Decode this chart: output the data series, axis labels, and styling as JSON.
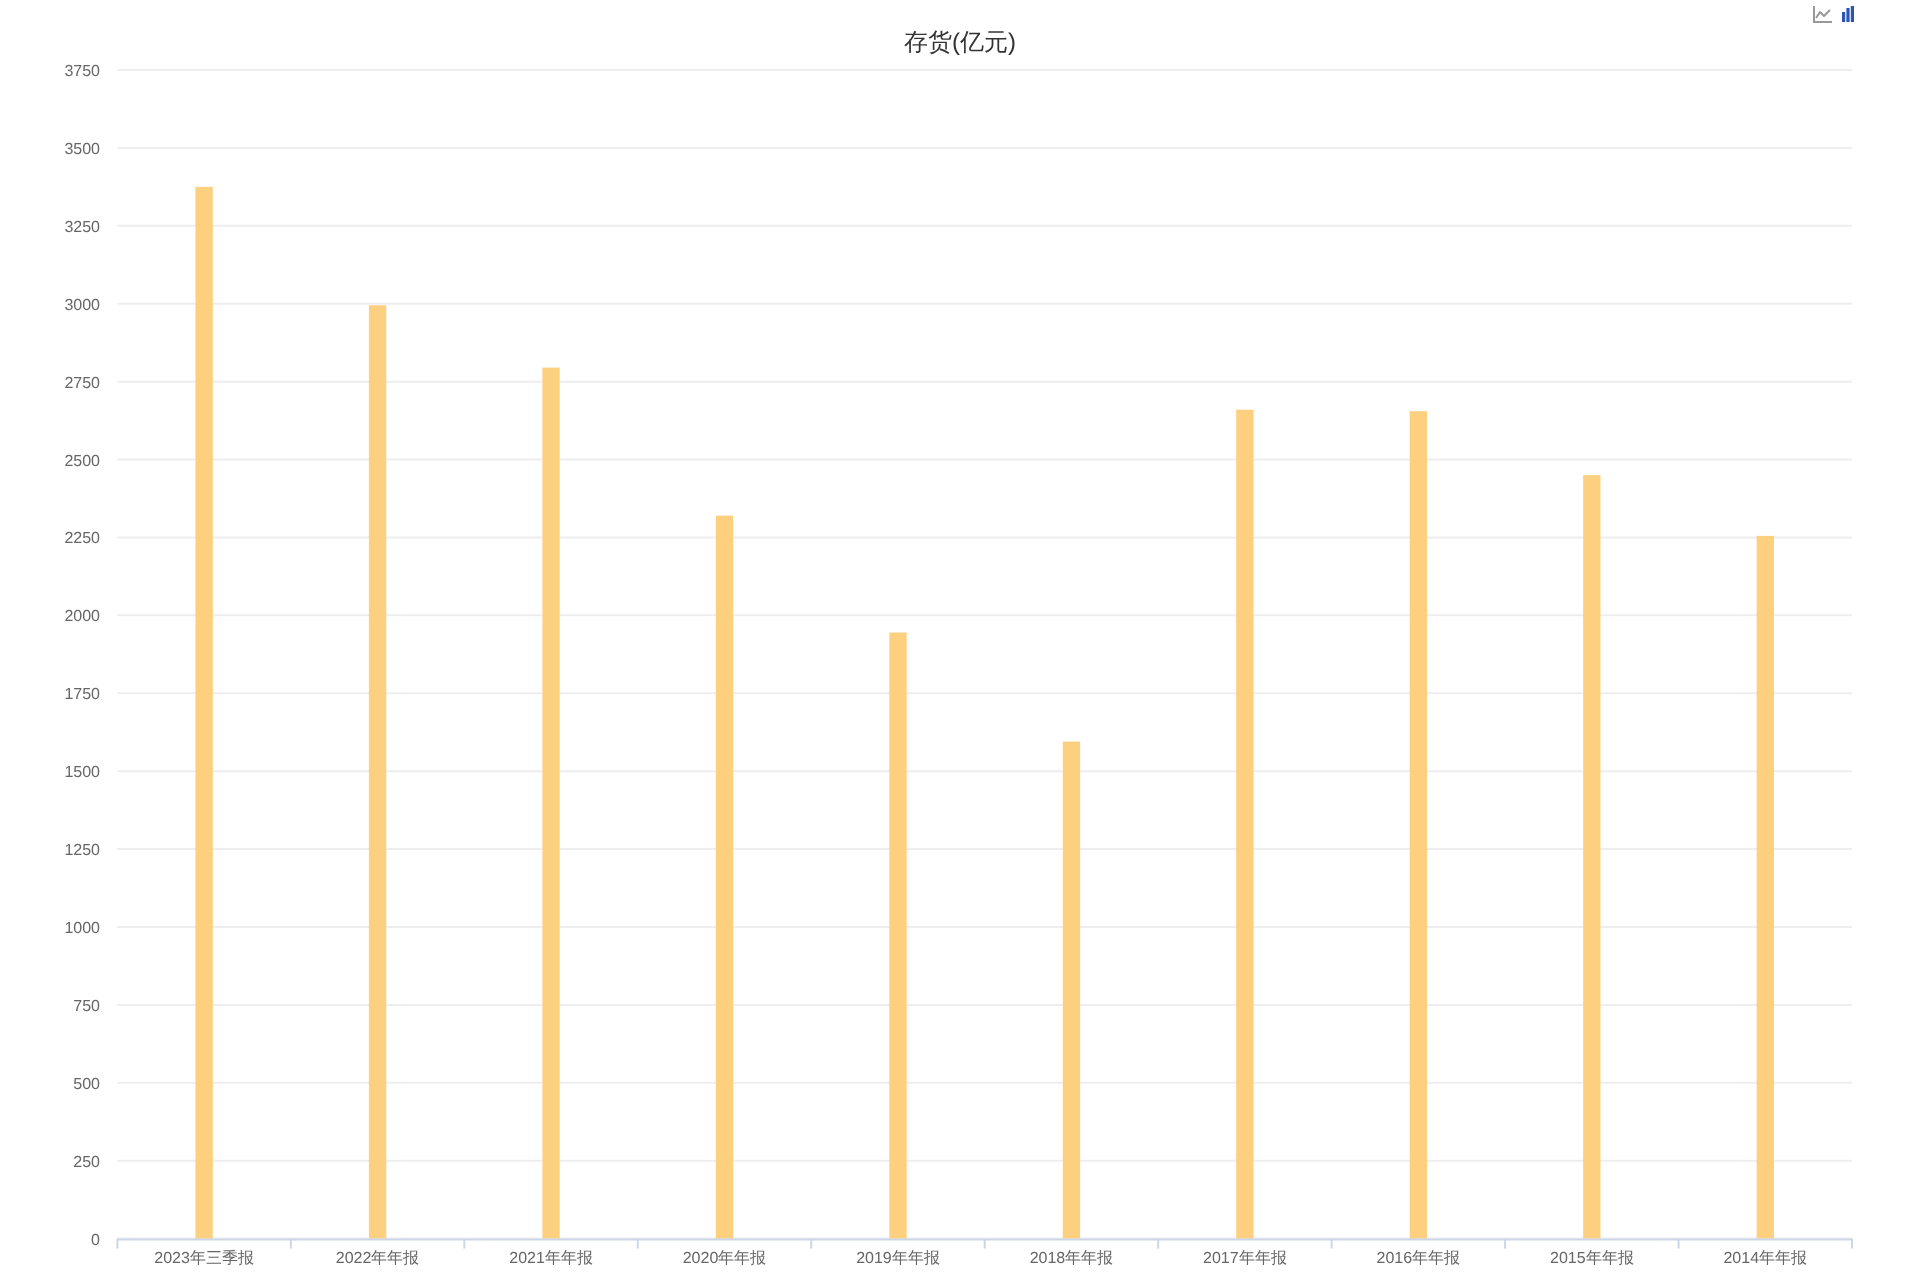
{
  "chart_data": {
    "type": "bar",
    "title": "存货(亿元)",
    "categories": [
      "2023年三季报",
      "2022年年报",
      "2021年年报",
      "2020年年报",
      "2019年年报",
      "2018年年报",
      "2017年年报",
      "2016年年报",
      "2015年年报",
      "2014年年报"
    ],
    "values": [
      3375,
      2995,
      2795,
      2320,
      1945,
      1595,
      2660,
      2655,
      2450,
      2255
    ],
    "color": "#fdd07f",
    "ylim": [
      0,
      3750
    ],
    "yticks": [
      0,
      250,
      500,
      750,
      1000,
      1250,
      1500,
      1750,
      2000,
      2250,
      2500,
      2750,
      3000,
      3250,
      3500,
      3750
    ],
    "grid": "y"
  }
}
